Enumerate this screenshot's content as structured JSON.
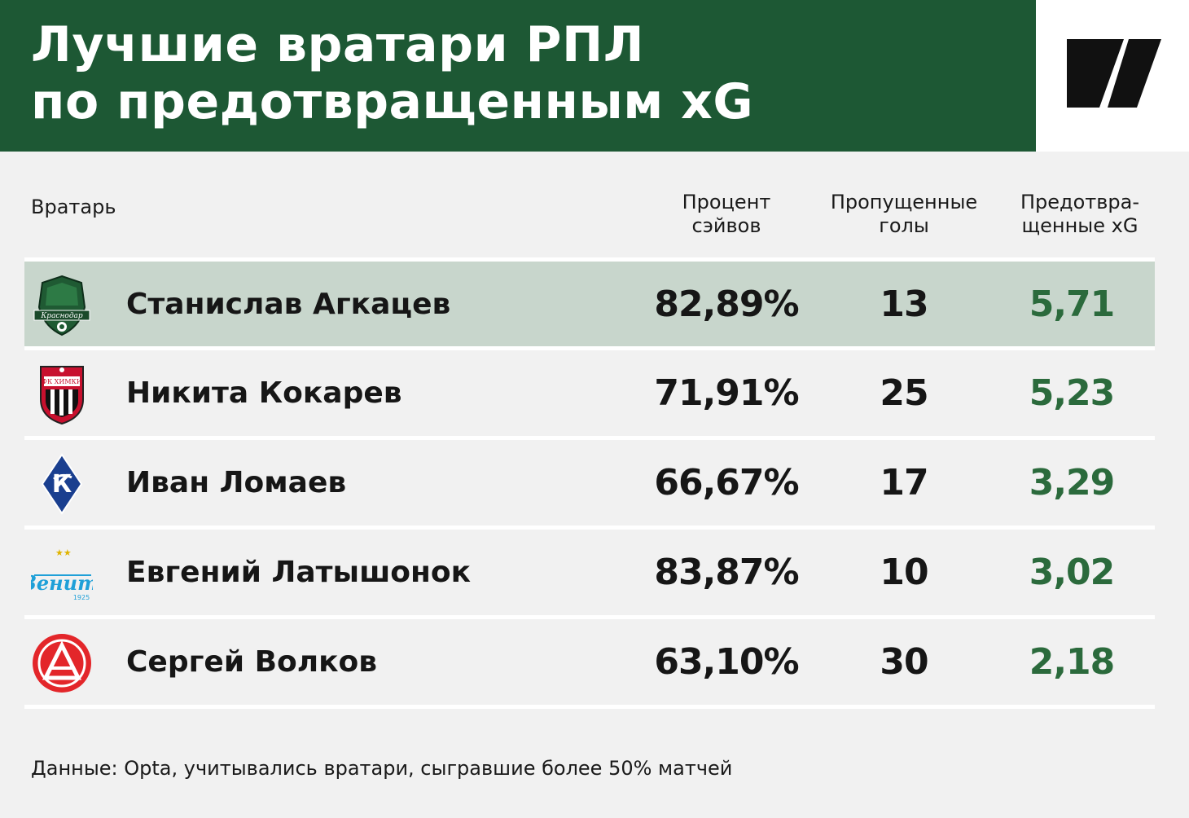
{
  "header": {
    "title_line1": "Лучшие вратари РПЛ",
    "title_line2": "по предотвращенным xG",
    "logo_icon": "brand-logo-icon"
  },
  "columns": {
    "goalkeeper": "Вратарь",
    "saves_pct": "Процент сэйвов",
    "goals_conceded": "Пропущенные голы",
    "prevented_xg": "Предотвра-щенные xG"
  },
  "rows": [
    {
      "player": "Станислав Агкацев",
      "club_icon": "krasnodar-crest-icon",
      "saves_pct": "82,89%",
      "goals_conceded": "13",
      "prevented_xg": "5,71"
    },
    {
      "player": "Никита Кокарев",
      "club_icon": "khimki-crest-icon",
      "saves_pct": "71,91%",
      "goals_conceded": "25",
      "prevented_xg": "5,23"
    },
    {
      "player": "Иван Ломаев",
      "club_icon": "krylia-sovetov-crest-icon",
      "saves_pct": "66,67%",
      "goals_conceded": "17",
      "prevented_xg": "3,29"
    },
    {
      "player": "Евгений Латышонок",
      "club_icon": "zenit-crest-icon",
      "saves_pct": "83,87%",
      "goals_conceded": "10",
      "prevented_xg": "3,02"
    },
    {
      "player": "Сергей Волков",
      "club_icon": "akron-crest-icon",
      "saves_pct": "63,10%",
      "goals_conceded": "30",
      "prevented_xg": "2,18"
    }
  ],
  "crest_text": {
    "krasnodar": "Краснодар",
    "khimki": "ФК ХИМКИ",
    "khimki_year": "1997",
    "zenit": "Зенит",
    "zenit_year": "1925"
  },
  "footnote": "Данные: Opta, учитывались вратари, сыгравшие более 50% матчей",
  "colors": {
    "header_bg": "#1d5834",
    "highlight_row": "#c8d6cc",
    "xg_value": "#2b6a3c",
    "page_bg": "#f1f1f1"
  }
}
